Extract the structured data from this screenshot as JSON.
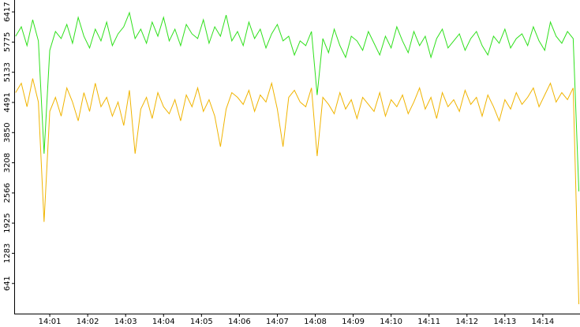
{
  "chart_data": {
    "type": "line",
    "x": [
      0.1,
      0.25,
      0.4,
      0.55,
      0.7,
      0.85,
      1.0,
      1.15,
      1.3,
      1.45,
      1.6,
      1.75,
      1.9,
      2.05,
      2.2,
      2.35,
      2.5,
      2.65,
      2.8,
      2.95,
      3.1,
      3.25,
      3.4,
      3.55,
      3.7,
      3.85,
      4.0,
      4.15,
      4.3,
      4.45,
      4.6,
      4.75,
      4.9,
      5.05,
      5.2,
      5.35,
      5.5,
      5.65,
      5.8,
      5.95,
      6.1,
      6.25,
      6.4,
      6.55,
      6.7,
      6.85,
      7.0,
      7.15,
      7.3,
      7.45,
      7.6,
      7.75,
      7.9,
      8.05,
      8.2,
      8.35,
      8.5,
      8.65,
      8.8,
      8.95,
      9.1,
      9.25,
      9.4,
      9.55,
      9.7,
      9.85,
      10.0,
      10.15,
      10.3,
      10.45,
      10.6,
      10.75,
      10.9,
      11.05,
      11.2,
      11.35,
      11.5,
      11.65,
      11.8,
      11.95,
      12.1,
      12.25,
      12.4,
      12.55,
      12.7,
      12.85,
      13.0,
      13.15,
      13.3,
      13.45,
      13.6,
      13.75,
      13.9,
      14.05,
      14.2,
      14.35,
      14.5,
      14.65,
      14.8,
      14.95
    ],
    "series": [
      {
        "color": "#2fe01c",
        "values": [
          5900,
          6100,
          5700,
          6250,
          5800,
          3400,
          5600,
          6000,
          5850,
          6150,
          5750,
          6300,
          5900,
          5650,
          6050,
          5800,
          6200,
          5700,
          5950,
          6100,
          6400,
          5850,
          6050,
          5750,
          6200,
          5900,
          6300,
          5800,
          6050,
          5700,
          6150,
          5950,
          5850,
          6250,
          5750,
          6100,
          5900,
          6350,
          5800,
          6000,
          5700,
          6200,
          5850,
          6050,
          5650,
          5950,
          6150,
          5800,
          5900,
          5500,
          5800,
          5700,
          6000,
          4650,
          5850,
          5550,
          6050,
          5700,
          5450,
          5900,
          5800,
          5600,
          6000,
          5750,
          5500,
          5900,
          5650,
          6100,
          5800,
          5550,
          6000,
          5700,
          5900,
          5450,
          5850,
          6050,
          5650,
          5800,
          5950,
          5600,
          5850,
          6000,
          5700,
          5500,
          5900,
          5750,
          6050,
          5650,
          5850,
          5950,
          5700,
          6100,
          5800,
          5600,
          6200,
          5900,
          5750,
          6000,
          5850,
          2600
        ]
      },
      {
        "color": "#f0b400",
        "values": [
          4700,
          4900,
          4400,
          5000,
          4500,
          1950,
          4300,
          4600,
          4200,
          4800,
          4500,
          4100,
          4700,
          4300,
          4900,
          4400,
          4600,
          4200,
          4500,
          4000,
          4750,
          3400,
          4350,
          4600,
          4150,
          4700,
          4400,
          4250,
          4550,
          4100,
          4650,
          4400,
          4800,
          4300,
          4550,
          4200,
          3550,
          4350,
          4700,
          4600,
          4450,
          4750,
          4300,
          4650,
          4500,
          4900,
          4350,
          3550,
          4600,
          4750,
          4500,
          4400,
          4800,
          3350,
          4600,
          4450,
          4250,
          4700,
          4350,
          4550,
          4150,
          4600,
          4450,
          4300,
          4700,
          4200,
          4550,
          4400,
          4650,
          4250,
          4500,
          4800,
          4350,
          4600,
          4150,
          4700,
          4400,
          4550,
          4300,
          4750,
          4450,
          4600,
          4200,
          4650,
          4400,
          4100,
          4550,
          4350,
          4700,
          4450,
          4600,
          4800,
          4400,
          4650,
          4900,
          4500,
          4700,
          4550,
          4800,
          200
        ]
      }
    ],
    "xlim": [
      0.0625,
      14.98
    ],
    "xticks": [
      {
        "value": 1,
        "label": "14:01"
      },
      {
        "value": 2,
        "label": "14:02"
      },
      {
        "value": 3,
        "label": "14:03"
      },
      {
        "value": 4,
        "label": "14:04"
      },
      {
        "value": 5,
        "label": "14:05"
      },
      {
        "value": 6,
        "label": "14:06"
      },
      {
        "value": 7,
        "label": "14:07"
      },
      {
        "value": 8,
        "label": "14:08"
      },
      {
        "value": 9,
        "label": "14:09"
      },
      {
        "value": 10,
        "label": "14:10"
      },
      {
        "value": 11,
        "label": "14:11"
      },
      {
        "value": 12,
        "label": "14:12"
      },
      {
        "value": 13,
        "label": "14:13"
      },
      {
        "value": 14,
        "label": "14:14"
      }
    ],
    "ylim": [
      0,
      6670
    ],
    "yticks": [
      641,
      1283,
      1925,
      2566,
      3208,
      3850,
      4491,
      5133,
      5775,
      6417
    ]
  }
}
